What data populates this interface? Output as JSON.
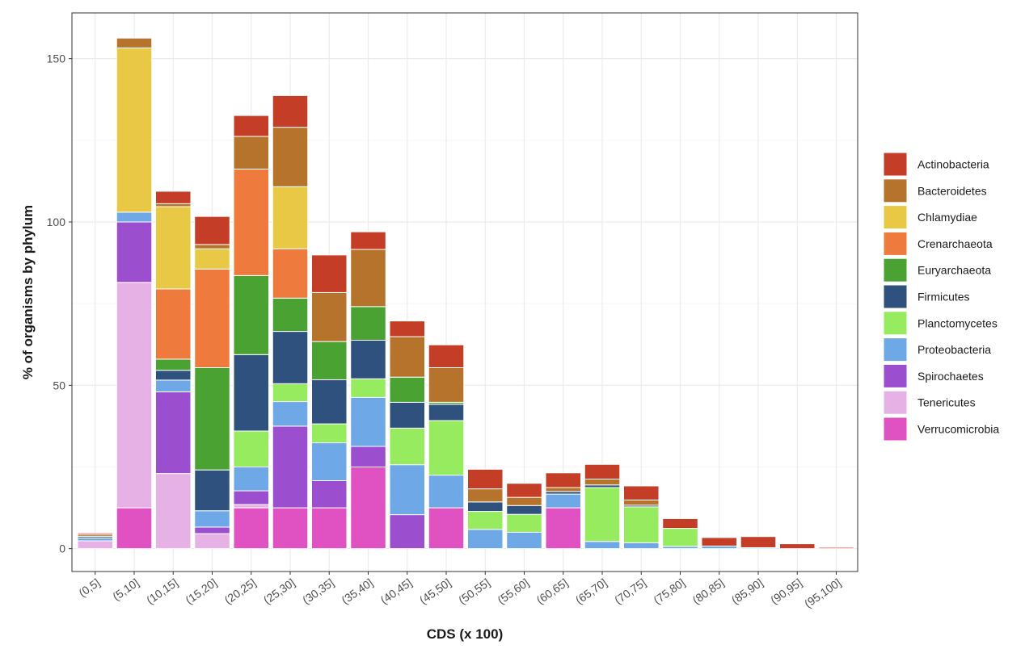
{
  "chart_data": {
    "type": "bar",
    "stacked": true,
    "title": "",
    "xlabel": "CDS (x 100)",
    "ylabel": "% of organisms by phylum",
    "ylim": [
      -7,
      164
    ],
    "yticks": [
      0,
      50,
      100,
      150
    ],
    "grid": true,
    "legend_position": "right",
    "categories": [
      "(0,5]",
      "(5,10]",
      "(10,15]",
      "(15,20]",
      "(20,25]",
      "(25,30]",
      "(30,35]",
      "(35,40]",
      "(40,45]",
      "(45,50]",
      "(50,55]",
      "(55,60]",
      "(60,65]",
      "(65,70]",
      "(70,75]",
      "(75,80]",
      "(80,85]",
      "(85,90]",
      "(90,95]",
      "(95,100]"
    ],
    "series": [
      {
        "name": "Verrucomicrobia",
        "color": "#E052C2",
        "values": [
          0,
          12.5,
          0,
          0,
          12.5,
          12.5,
          12.5,
          25,
          0,
          12.5,
          0,
          0,
          12.5,
          0,
          0,
          0,
          0,
          0,
          0,
          0
        ]
      },
      {
        "name": "Tenericutes",
        "color": "#E6B2E6",
        "values": [
          2.4,
          69,
          23,
          4.6,
          1,
          0,
          0,
          0,
          0,
          0,
          0,
          0,
          0,
          0,
          0,
          0,
          0,
          0,
          0,
          0
        ]
      },
      {
        "name": "Spirochaetes",
        "color": "#9B4FCF",
        "values": [
          0,
          18.5,
          25,
          2,
          4.2,
          25,
          8.3,
          6.3,
          10.4,
          0,
          0,
          0,
          0,
          0,
          0,
          0,
          0,
          0,
          0,
          0
        ]
      },
      {
        "name": "Proteobacteria",
        "color": "#6FA8E6",
        "values": [
          0.9,
          3,
          3.6,
          5,
          7.3,
          7.5,
          11.6,
          15,
          15.3,
          10,
          5.9,
          5,
          4.2,
          2.2,
          1.8,
          0.7,
          0.8,
          0.3,
          0,
          0
        ]
      },
      {
        "name": "Planctomycetes",
        "color": "#96EB5E",
        "values": [
          0,
          0,
          0,
          0,
          11,
          5.5,
          5.8,
          5.7,
          11.2,
          16.7,
          5.5,
          5.5,
          0,
          16.5,
          11,
          5.5,
          0,
          0,
          0,
          0
        ]
      },
      {
        "name": "Firmicutes",
        "color": "#2E527D",
        "values": [
          0.5,
          0,
          3,
          12.5,
          23.4,
          16,
          13.5,
          11.8,
          7.9,
          5,
          2.9,
          2.7,
          0.8,
          0.8,
          0.5,
          0,
          0,
          0,
          0,
          0
        ]
      },
      {
        "name": "Euryarchaeota",
        "color": "#49A232",
        "values": [
          0,
          0,
          3.4,
          31.3,
          24.2,
          10.2,
          11.7,
          10.3,
          7.7,
          0.6,
          0,
          0,
          0,
          0,
          0,
          0,
          0,
          0,
          0,
          0
        ]
      },
      {
        "name": "Crenarchaeota",
        "color": "#EE7A3D",
        "values": [
          0,
          0,
          21.5,
          30.2,
          32.6,
          15.1,
          0,
          0,
          0,
          0,
          0,
          0,
          0,
          0,
          0,
          0,
          0,
          0,
          0,
          0
        ]
      },
      {
        "name": "Chlamydiae",
        "color": "#E8C844",
        "values": [
          0,
          50.3,
          25.2,
          6.2,
          0,
          19,
          0,
          0,
          0,
          0,
          0,
          0,
          0,
          0,
          0,
          0,
          0,
          0,
          0,
          0
        ]
      },
      {
        "name": "Bacteroidetes",
        "color": "#B6732B",
        "values": [
          0.6,
          3,
          0.9,
          1.3,
          10,
          18.2,
          15,
          17.5,
          12.4,
          10.6,
          4,
          2.5,
          1.2,
          1.8,
          1.6,
          0,
          0,
          0,
          0,
          0
        ]
      },
      {
        "name": "Actinobacteria",
        "color": "#C43D26",
        "values": [
          0.4,
          0,
          3.8,
          8.6,
          6.4,
          9.7,
          11.5,
          5.4,
          4.8,
          7,
          6,
          4.3,
          4.5,
          4.5,
          4.3,
          3,
          2.6,
          3.4,
          1.5,
          0.4
        ]
      }
    ],
    "legend_order": [
      "Actinobacteria",
      "Bacteroidetes",
      "Chlamydiae",
      "Crenarchaeota",
      "Euryarchaeota",
      "Firmicutes",
      "Planctomycetes",
      "Proteobacteria",
      "Spirochaetes",
      "Tenericutes",
      "Verrucomicrobia"
    ],
    "colors": {
      "panel_border": "#333333",
      "grid_major": "#ebebeb",
      "grid_minor": "#f5f5f5",
      "background": "#ffffff"
    }
  }
}
